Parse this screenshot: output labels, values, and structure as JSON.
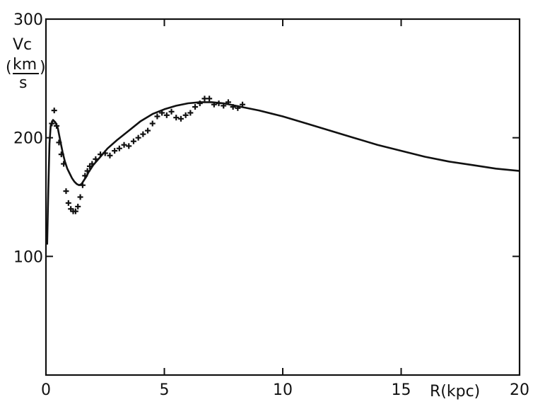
{
  "chart_data": {
    "type": "line",
    "title": "",
    "xlabel": "R(kpc)",
    "ylabel_v": "Vc",
    "ylabel_units_num": "km",
    "ylabel_units_den": "s",
    "ylabel_paren_open": "(",
    "ylabel_paren_close": ")",
    "xlim": [
      0,
      20
    ],
    "ylim": [
      0,
      300
    ],
    "grid": false,
    "x_ticks": [
      0,
      5,
      10,
      15,
      20
    ],
    "x_tick_labels": [
      "0",
      "5",
      "10",
      "15",
      "20"
    ],
    "y_ticks": [
      100,
      200,
      300
    ],
    "y_tick_labels": [
      "100",
      "200",
      "300"
    ],
    "series": [
      {
        "kind": "model-curve",
        "x": [
          0.05,
          0.1,
          0.15,
          0.2,
          0.3,
          0.4,
          0.5,
          0.6,
          0.7,
          0.8,
          0.9,
          1.0,
          1.1,
          1.2,
          1.3,
          1.4,
          1.5,
          1.6,
          1.7,
          1.8,
          2.0,
          2.3,
          2.6,
          3.0,
          3.5,
          4.0,
          4.5,
          5.0,
          5.5,
          6.0,
          6.5,
          7.0,
          7.5,
          8.0,
          9.0,
          10.0,
          11.0,
          12.0,
          13.0,
          14.0,
          15.0,
          16.0,
          17.0,
          18.0,
          19.0,
          20.0
        ],
        "y": [
          110,
          155,
          195,
          210,
          215,
          213,
          208,
          198,
          188,
          180,
          174,
          170,
          166,
          163,
          161,
          160,
          161,
          164,
          167,
          171,
          177,
          184,
          191,
          198,
          206,
          214,
          220,
          224,
          227,
          229,
          230,
          230,
          229,
          227,
          223,
          218,
          212,
          206,
          200,
          194,
          189,
          184,
          180,
          177,
          174,
          172
        ]
      },
      {
        "kind": "observations",
        "x": [
          0.25,
          0.35,
          0.45,
          0.55,
          0.65,
          0.75,
          0.85,
          0.95,
          1.05,
          1.15,
          1.25,
          1.35,
          1.45,
          1.55,
          1.65,
          1.75,
          1.85,
          1.95,
          2.1,
          2.3,
          2.5,
          2.7,
          2.9,
          3.1,
          3.3,
          3.5,
          3.7,
          3.9,
          4.1,
          4.3,
          4.5,
          4.7,
          4.9,
          5.1,
          5.3,
          5.5,
          5.7,
          5.9,
          6.1,
          6.3,
          6.5,
          6.7,
          6.9,
          7.1,
          7.3,
          7.5,
          7.7,
          7.9,
          8.1,
          8.3
        ],
        "y": [
          212,
          223,
          210,
          196,
          186,
          178,
          155,
          145,
          140,
          138,
          138,
          142,
          150,
          160,
          168,
          172,
          176,
          178,
          182,
          186,
          187,
          185,
          189,
          191,
          194,
          193,
          197,
          200,
          203,
          206,
          212,
          218,
          221,
          219,
          222,
          217,
          216,
          219,
          221,
          226,
          229,
          233,
          233,
          228,
          229,
          227,
          230,
          226,
          225,
          228
        ]
      }
    ]
  }
}
